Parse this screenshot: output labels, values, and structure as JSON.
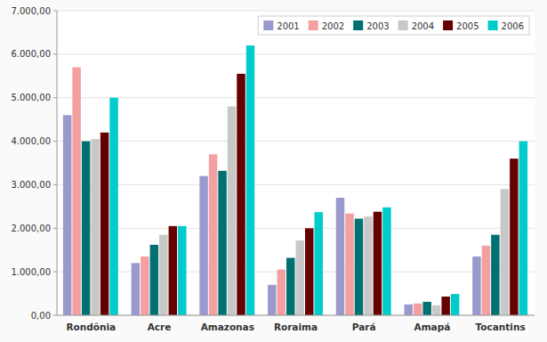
{
  "chart_data": {
    "type": "bar",
    "categories": [
      "Rondônia",
      "Acre",
      "Amazonas",
      "Roraima",
      "Pará",
      "Amapá",
      "Tocantins"
    ],
    "series": [
      {
        "name": "2001",
        "color": "#9999CC",
        "values": [
          4600,
          1200,
          3200,
          700,
          2700,
          250,
          1350
        ]
      },
      {
        "name": "2002",
        "color": "#F4A0A0",
        "values": [
          5700,
          1350,
          3700,
          1050,
          2340,
          270,
          1600
        ]
      },
      {
        "name": "2003",
        "color": "#007070",
        "values": [
          4000,
          1620,
          3320,
          1320,
          2220,
          310,
          1850
        ]
      },
      {
        "name": "2004",
        "color": "#C8C8C8",
        "values": [
          4050,
          1850,
          4800,
          1720,
          2270,
          230,
          2900
        ]
      },
      {
        "name": "2005",
        "color": "#660000",
        "values": [
          4200,
          2050,
          5550,
          2000,
          2380,
          430,
          3600
        ]
      },
      {
        "name": "2006",
        "color": "#00CCCC",
        "values": [
          5000,
          2050,
          6200,
          2370,
          2480,
          490,
          4000
        ]
      }
    ],
    "ylim": [
      0,
      7000
    ],
    "yticks": [
      {
        "value": 0,
        "label": "0,00"
      },
      {
        "value": 1000,
        "label": "1.000,00"
      },
      {
        "value": 2000,
        "label": "2.000,00"
      },
      {
        "value": 3000,
        "label": "3.000,00"
      },
      {
        "value": 4000,
        "label": "4.000,00"
      },
      {
        "value": 5000,
        "label": "5.000,00"
      },
      {
        "value": 6000,
        "label": "6.000,00"
      },
      {
        "value": 7000,
        "label": "7.000,00"
      }
    ],
    "grid": true,
    "legend": "upper right"
  }
}
